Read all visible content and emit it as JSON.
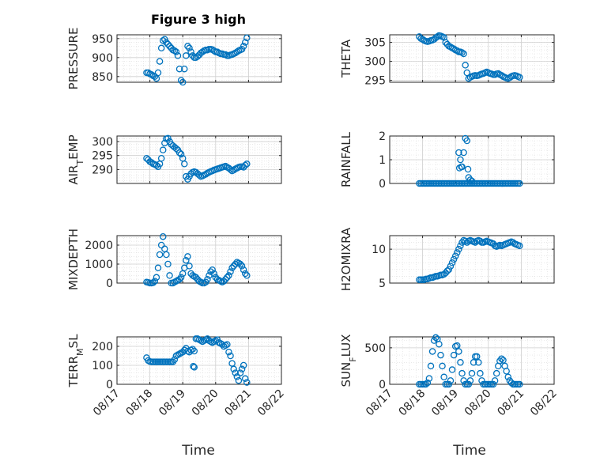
{
  "figure": {
    "title": "Figure 3 high",
    "xlabel": "Time",
    "x_tick_labels": [
      "08/17",
      "08/18",
      "08/19",
      "08/20",
      "08/21",
      "08/22"
    ],
    "marker_color": "#0072BD"
  },
  "chart_data": [
    {
      "type": "scatter",
      "id": "pressure",
      "title": "Figure 3 high",
      "ylabel": {
        "main": "PRESSURE",
        "sub": "",
        "tail": ""
      },
      "ylim": [
        835,
        960
      ],
      "yticks": [
        850,
        900,
        950
      ],
      "xlim": [
        0,
        5
      ],
      "x": [
        0.9,
        0.95,
        1.0,
        1.05,
        1.1,
        1.15,
        1.2,
        1.25,
        1.3,
        1.35,
        1.4,
        1.45,
        1.5,
        1.55,
        1.6,
        1.65,
        1.7,
        1.75,
        1.8,
        1.85,
        1.9,
        1.95,
        2.0,
        2.05,
        2.1,
        2.15,
        2.2,
        2.25,
        2.3,
        2.35,
        2.4,
        2.45,
        2.5,
        2.55,
        2.6,
        2.65,
        2.7,
        2.75,
        2.8,
        2.85,
        2.9,
        2.95,
        3.0,
        3.05,
        3.1,
        3.15,
        3.2,
        3.25,
        3.3,
        3.35,
        3.4,
        3.45,
        3.5,
        3.55,
        3.6,
        3.65,
        3.7,
        3.75,
        3.8,
        3.85,
        3.9,
        3.95
      ],
      "values": [
        860,
        860,
        857,
        855,
        852,
        850,
        845,
        860,
        890,
        925,
        945,
        948,
        940,
        935,
        930,
        925,
        920,
        918,
        915,
        905,
        870,
        840,
        835,
        870,
        905,
        930,
        925,
        915,
        905,
        900,
        900,
        903,
        907,
        912,
        915,
        918,
        920,
        920,
        922,
        922,
        921,
        918,
        915,
        915,
        912,
        910,
        910,
        908,
        908,
        905,
        905,
        907,
        908,
        910,
        912,
        915,
        918,
        920,
        922,
        930,
        940,
        952
      ]
    },
    {
      "type": "scatter",
      "id": "theta",
      "title": "",
      "ylabel": {
        "main": "THETA",
        "sub": "",
        "tail": ""
      },
      "ylim": [
        294.5,
        307
      ],
      "yticks": [
        295,
        300,
        305
      ],
      "xlim": [
        0,
        5
      ],
      "x": [
        0.9,
        0.95,
        1.0,
        1.05,
        1.1,
        1.15,
        1.2,
        1.25,
        1.3,
        1.35,
        1.4,
        1.45,
        1.5,
        1.55,
        1.6,
        1.65,
        1.7,
        1.75,
        1.8,
        1.85,
        1.9,
        1.95,
        2.0,
        2.05,
        2.1,
        2.15,
        2.2,
        2.25,
        2.3,
        2.35,
        2.4,
        2.45,
        2.5,
        2.55,
        2.6,
        2.65,
        2.7,
        2.75,
        2.8,
        2.85,
        2.9,
        2.95,
        3.0,
        3.05,
        3.1,
        3.15,
        3.2,
        3.25,
        3.3,
        3.35,
        3.4,
        3.45,
        3.5,
        3.55,
        3.6,
        3.65,
        3.7,
        3.75,
        3.8,
        3.85,
        3.9,
        3.95
      ],
      "values": [
        306.5,
        306,
        305.8,
        305.5,
        305.3,
        305.2,
        305.3,
        305.5,
        305.6,
        305.8,
        306.2,
        306.5,
        306.8,
        306.7,
        306.5,
        306.3,
        305,
        304.5,
        304,
        303.8,
        303.5,
        303.3,
        303,
        302.8,
        302.5,
        302.5,
        302.3,
        302,
        299,
        297,
        295.5,
        295.8,
        296,
        296.2,
        296.3,
        296.2,
        296.3,
        296.5,
        296.7,
        296.8,
        297,
        297.2,
        297,
        296.8,
        296.7,
        296.5,
        296.5,
        296.7,
        296.8,
        296.5,
        296.3,
        296,
        295.8,
        295.6,
        295.5,
        295.7,
        296,
        296.2,
        296.3,
        296.2,
        296,
        295.8
      ]
    },
    {
      "type": "scatter",
      "id": "air-temp",
      "title": "",
      "ylabel": {
        "main": "AIR",
        "sub": "T",
        "tail": "EMP"
      },
      "ylim": [
        285,
        302
      ],
      "yticks": [
        290,
        295,
        300
      ],
      "xlim": [
        0,
        5
      ],
      "x": [
        0.9,
        0.95,
        1.0,
        1.05,
        1.1,
        1.15,
        1.2,
        1.25,
        1.3,
        1.35,
        1.4,
        1.45,
        1.5,
        1.55,
        1.6,
        1.65,
        1.7,
        1.75,
        1.8,
        1.85,
        1.9,
        1.95,
        2.0,
        2.05,
        2.1,
        2.15,
        2.2,
        2.25,
        2.3,
        2.35,
        2.4,
        2.45,
        2.5,
        2.55,
        2.6,
        2.65,
        2.7,
        2.75,
        2.8,
        2.85,
        2.9,
        2.95,
        3.0,
        3.05,
        3.1,
        3.15,
        3.2,
        3.25,
        3.3,
        3.35,
        3.4,
        3.45,
        3.5,
        3.55,
        3.6,
        3.65,
        3.7,
        3.75,
        3.8,
        3.85,
        3.9,
        3.95
      ],
      "values": [
        294,
        293.5,
        292.8,
        292.5,
        292,
        291.8,
        291.5,
        291,
        292,
        294,
        297,
        299.5,
        301,
        301.2,
        300,
        299,
        298.5,
        298,
        297.5,
        297,
        296,
        295.5,
        294,
        292,
        287.5,
        286.5,
        287.5,
        288.5,
        289,
        289.2,
        289,
        288.5,
        288,
        287.5,
        287.7,
        288,
        288.3,
        288.7,
        289,
        289.3,
        289.5,
        289.8,
        290,
        290.2,
        290.4,
        290.6,
        290.8,
        291,
        291.2,
        290.8,
        290.5,
        290,
        289.5,
        289.8,
        290.2,
        290.5,
        290.8,
        291,
        291,
        290.8,
        291.5,
        292
      ]
    },
    {
      "type": "scatter",
      "id": "rainfall",
      "title": "",
      "ylabel": {
        "main": "RAINFALL",
        "sub": "",
        "tail": ""
      },
      "ylim": [
        0,
        2
      ],
      "yticks": [
        0,
        1,
        2
      ],
      "xlim": [
        0,
        5
      ],
      "x": [
        0.9,
        0.95,
        1.0,
        1.05,
        1.1,
        1.15,
        1.2,
        1.25,
        1.3,
        1.35,
        1.4,
        1.45,
        1.5,
        1.55,
        1.6,
        1.65,
        1.7,
        1.75,
        1.8,
        1.85,
        1.9,
        1.95,
        2.0,
        2.05,
        2.1,
        2.15,
        2.2,
        2.25,
        2.3,
        2.35,
        2.4,
        2.45,
        2.5,
        2.55,
        2.6,
        2.65,
        2.7,
        2.75,
        2.8,
        2.85,
        2.9,
        2.95,
        3.0,
        3.05,
        3.1,
        3.15,
        3.2,
        3.25,
        3.3,
        3.35,
        3.4,
        3.45,
        3.5,
        3.55,
        3.6,
        3.65,
        3.7,
        3.75,
        3.8,
        3.85,
        3.9,
        3.95,
        2.1,
        2.12,
        2.15,
        2.18,
        2.2,
        2.25,
        2.3,
        2.35,
        2.38,
        2.4,
        2.45,
        2.5
      ],
      "values": [
        0,
        0,
        0,
        0,
        0,
        0,
        0,
        0,
        0,
        0,
        0,
        0,
        0,
        0,
        0,
        0,
        0,
        0,
        0,
        0,
        0,
        0,
        0,
        0,
        0,
        0,
        0,
        0,
        0,
        0,
        0,
        0,
        0,
        0,
        0,
        0,
        0,
        0,
        0,
        0,
        0,
        0,
        0,
        0,
        0,
        0,
        0,
        0,
        0,
        0,
        0,
        0,
        0,
        0,
        0,
        0,
        0,
        0,
        0,
        0,
        0,
        0,
        1.3,
        0.65,
        1.0,
        0.7,
        0.7,
        1.3,
        1.9,
        1.8,
        0.6,
        0.25,
        0.15,
        0.1
      ]
    },
    {
      "type": "scatter",
      "id": "mixdepth",
      "title": "",
      "ylabel": {
        "main": "MIXDEPTH",
        "sub": "",
        "tail": ""
      },
      "ylim": [
        0,
        2500
      ],
      "yticks": [
        0,
        1000,
        2000
      ],
      "xlim": [
        0,
        5
      ],
      "x": [
        0.9,
        0.95,
        1.0,
        1.05,
        1.1,
        1.15,
        1.2,
        1.25,
        1.3,
        1.35,
        1.4,
        1.45,
        1.5,
        1.55,
        1.6,
        1.65,
        1.7,
        1.75,
        1.8,
        1.85,
        1.9,
        1.95,
        2.0,
        2.05,
        2.1,
        2.15,
        2.2,
        2.25,
        2.3,
        2.35,
        2.4,
        2.45,
        2.5,
        2.55,
        2.6,
        2.65,
        2.7,
        2.75,
        2.8,
        2.85,
        2.9,
        2.95,
        3.0,
        3.05,
        3.1,
        3.15,
        3.2,
        3.25,
        3.3,
        3.35,
        3.4,
        3.45,
        3.5,
        3.55,
        3.6,
        3.65,
        3.7,
        3.75,
        3.8,
        3.85,
        3.9,
        3.95
      ],
      "values": [
        50,
        30,
        0,
        0,
        20,
        100,
        300,
        800,
        1500,
        2000,
        2450,
        1800,
        1500,
        1000,
        400,
        0,
        0,
        50,
        100,
        150,
        200,
        300,
        500,
        800,
        1200,
        1400,
        900,
        500,
        400,
        350,
        300,
        200,
        100,
        50,
        0,
        0,
        50,
        200,
        400,
        600,
        700,
        500,
        300,
        200,
        150,
        100,
        50,
        100,
        200,
        300,
        400,
        600,
        800,
        900,
        1000,
        1100,
        1050,
        1000,
        900,
        700,
        500,
        400
      ]
    },
    {
      "type": "scatter",
      "id": "h2omixra",
      "title": "",
      "ylabel": {
        "main": "H2OMIXRA",
        "sub": "",
        "tail": ""
      },
      "ylim": [
        5,
        12
      ],
      "yticks": [
        5,
        10
      ],
      "xlim": [
        0,
        5
      ],
      "x": [
        0.9,
        0.95,
        1.0,
        1.05,
        1.1,
        1.15,
        1.2,
        1.25,
        1.3,
        1.35,
        1.4,
        1.45,
        1.5,
        1.55,
        1.6,
        1.65,
        1.7,
        1.75,
        1.8,
        1.85,
        1.9,
        1.95,
        2.0,
        2.05,
        2.1,
        2.15,
        2.2,
        2.25,
        2.3,
        2.35,
        2.4,
        2.45,
        2.5,
        2.55,
        2.6,
        2.65,
        2.7,
        2.75,
        2.8,
        2.85,
        2.9,
        2.95,
        3.0,
        3.05,
        3.1,
        3.15,
        3.2,
        3.25,
        3.3,
        3.35,
        3.4,
        3.45,
        3.5,
        3.55,
        3.6,
        3.65,
        3.7,
        3.75,
        3.8,
        3.85,
        3.9,
        3.95
      ],
      "values": [
        5.5,
        5.5,
        5.5,
        5.5,
        5.6,
        5.6,
        5.7,
        5.8,
        5.8,
        5.9,
        6,
        6,
        6.1,
        6.2,
        6.2,
        6.3,
        6.5,
        6.8,
        7,
        7.5,
        8,
        8.5,
        9,
        9.5,
        10,
        10.5,
        11,
        11.3,
        11.2,
        11,
        11.2,
        11.3,
        11.2,
        11.1,
        11,
        11.2,
        11.3,
        11.2,
        11,
        11,
        11.1,
        11.2,
        11.1,
        11,
        10.9,
        10.8,
        10.5,
        10.4,
        10.5,
        10.6,
        10.5,
        10.6,
        10.7,
        10.8,
        10.9,
        11,
        11.1,
        11,
        10.8,
        10.7,
        10.6,
        10.5
      ]
    },
    {
      "type": "scatter",
      "id": "terr-msl",
      "title": "",
      "ylabel": {
        "main": "TERR",
        "sub": "M",
        "tail": "SL"
      },
      "ylim": [
        0,
        250
      ],
      "yticks": [
        0,
        100,
        200
      ],
      "xlim": [
        0,
        5
      ],
      "x": [
        0.9,
        0.95,
        1.0,
        1.05,
        1.1,
        1.15,
        1.2,
        1.25,
        1.3,
        1.35,
        1.4,
        1.45,
        1.5,
        1.55,
        1.6,
        1.65,
        1.7,
        1.75,
        1.8,
        1.85,
        1.9,
        1.95,
        2.0,
        2.05,
        2.1,
        2.15,
        2.2,
        2.25,
        2.3,
        2.35,
        2.4,
        2.45,
        2.5,
        2.55,
        2.6,
        2.65,
        2.7,
        2.75,
        2.8,
        2.85,
        2.9,
        2.95,
        3.0,
        3.05,
        3.1,
        3.15,
        3.2,
        3.25,
        3.3,
        3.35,
        3.4,
        3.45,
        3.5,
        3.55,
        3.6,
        3.65,
        3.7,
        3.75,
        3.8,
        3.85,
        3.9,
        3.95,
        2.32,
        2.35
      ],
      "values": [
        140,
        125,
        120,
        118,
        118,
        118,
        118,
        118,
        118,
        118,
        118,
        118,
        118,
        118,
        118,
        118,
        118,
        130,
        150,
        155,
        160,
        165,
        170,
        180,
        190,
        175,
        170,
        180,
        185,
        175,
        240,
        240,
        235,
        230,
        225,
        230,
        235,
        240,
        230,
        225,
        220,
        225,
        230,
        235,
        220,
        215,
        210,
        200,
        205,
        210,
        170,
        150,
        110,
        80,
        60,
        40,
        20,
        60,
        80,
        100,
        30,
        10,
        95,
        90
      ]
    },
    {
      "type": "scatter",
      "id": "sun-flux",
      "title": "",
      "ylabel": {
        "main": "SUN",
        "sub": "F",
        "tail": "LUX"
      },
      "ylim": [
        0,
        650
      ],
      "yticks": [
        0,
        500
      ],
      "xlim": [
        0,
        5
      ],
      "x": [
        0.9,
        0.95,
        1.0,
        1.05,
        1.1,
        1.15,
        1.2,
        1.25,
        1.3,
        1.35,
        1.4,
        1.45,
        1.5,
        1.55,
        1.6,
        1.65,
        1.7,
        1.75,
        1.8,
        1.85,
        1.9,
        1.95,
        2.0,
        2.05,
        2.1,
        2.15,
        2.2,
        2.25,
        2.3,
        2.35,
        2.4,
        2.45,
        2.5,
        2.55,
        2.6,
        2.65,
        2.7,
        2.75,
        2.8,
        2.85,
        2.9,
        2.95,
        3.0,
        3.05,
        3.1,
        3.15,
        3.2,
        3.25,
        3.3,
        3.35,
        3.4,
        3.45,
        3.5,
        3.55,
        3.6,
        3.65,
        3.7,
        3.75,
        3.8,
        3.85,
        3.9,
        3.95
      ],
      "values": [
        0,
        0,
        0,
        0,
        0,
        20,
        80,
        250,
        450,
        600,
        640,
        620,
        550,
        400,
        250,
        100,
        0,
        0,
        0,
        50,
        200,
        400,
        520,
        530,
        450,
        300,
        150,
        50,
        0,
        0,
        0,
        50,
        150,
        300,
        380,
        380,
        300,
        150,
        50,
        0,
        0,
        0,
        0,
        0,
        0,
        0,
        50,
        150,
        250,
        320,
        350,
        330,
        250,
        180,
        100,
        50,
        20,
        0,
        0,
        0,
        0,
        0
      ]
    }
  ]
}
